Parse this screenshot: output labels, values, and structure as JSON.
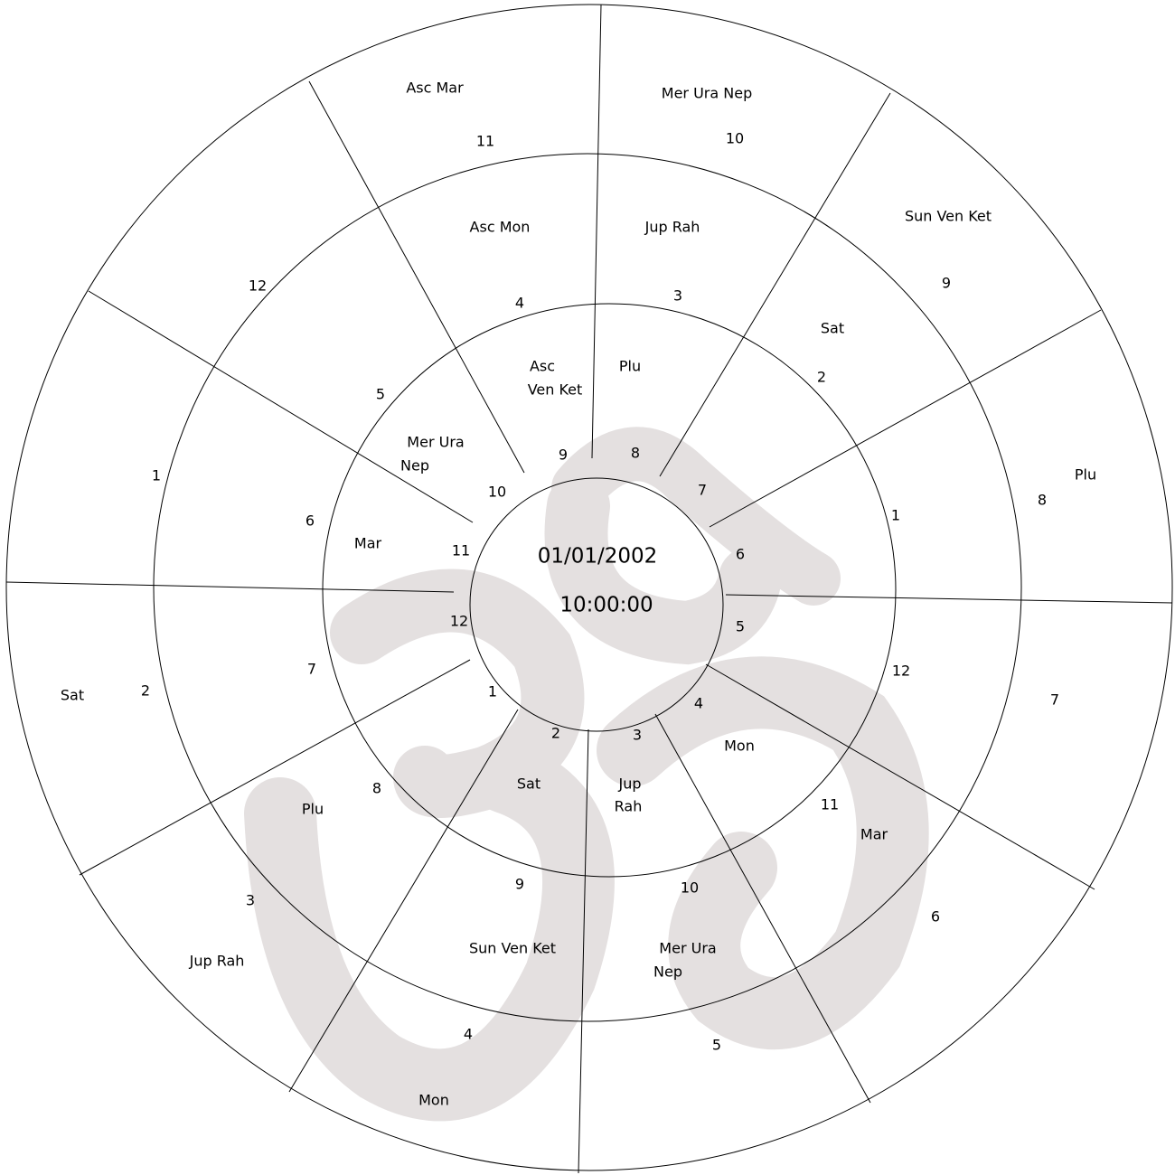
{
  "center": {
    "date": "01/01/2002",
    "time": "10:00:00"
  },
  "labels": [
    "Asc Mar",
    "11",
    "Mer Ura Nep",
    "10",
    "Sun Ven Ket",
    "9",
    "Plu",
    "8",
    "7",
    "6",
    "5",
    "4",
    "Mon",
    "3",
    "Jup Rah",
    "Sat",
    "2",
    "1",
    "12",
    "Asc Mon",
    "4",
    "Jup Rah",
    "3",
    "Sat",
    "2",
    "1",
    "12",
    "Mar",
    "11",
    "10",
    "Mer Ura",
    "Nep",
    "9",
    "Sun Ven Ket",
    "8",
    "Plu",
    "7",
    "6",
    "5",
    "Asc",
    "Ven Ket",
    "Plu",
    "9",
    "8",
    "7",
    "6",
    "5",
    "4",
    "Mon",
    "3",
    "Jup",
    "Rah",
    "2",
    "Sat",
    "1",
    "12",
    "11",
    "10",
    "Mer Ura",
    "Nep",
    "Mar"
  ]
}
